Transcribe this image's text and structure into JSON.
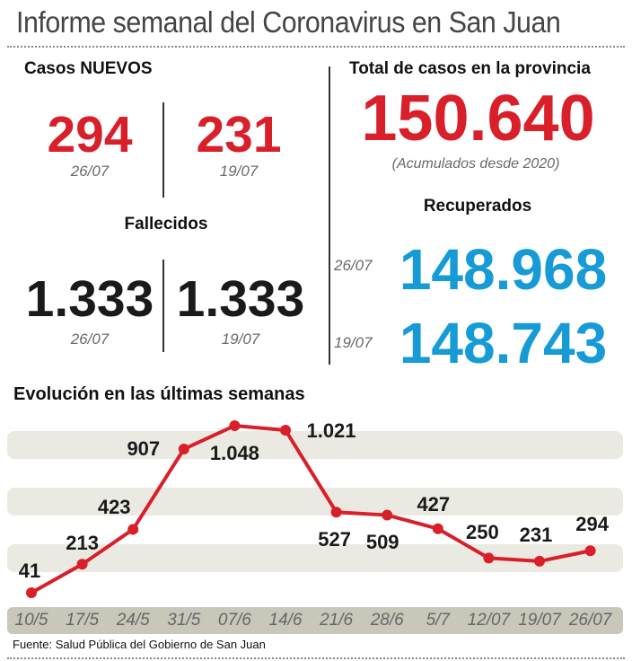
{
  "title": "Informe semanal del Coronavirus en San Juan",
  "casos_nuevos": {
    "heading": "Casos NUEVOS",
    "current": {
      "value": "294",
      "date": "26/07"
    },
    "previous": {
      "value": "231",
      "date": "19/07"
    }
  },
  "fallecidos": {
    "heading": "Fallecidos",
    "current": {
      "value": "1.333",
      "date": "26/07"
    },
    "previous": {
      "value": "1.333",
      "date": "19/07"
    }
  },
  "total": {
    "heading": "Total de casos en la provincia",
    "value": "150.640",
    "note": "(Acumulados desde 2020)"
  },
  "recuperados": {
    "heading": "Recuperados",
    "current": {
      "value": "148.968",
      "date": "26/07"
    },
    "previous": {
      "value": "148.743",
      "date": "19/07"
    }
  },
  "chart_data": {
    "type": "line",
    "title": "Evolución en las últimas semanas",
    "categories": [
      "10/5",
      "17/5",
      "24/5",
      "31/5",
      "07/6",
      "14/6",
      "21/6",
      "28/6",
      "5/7",
      "12/07",
      "19/07",
      "26/07"
    ],
    "values": [
      41,
      213,
      423,
      907,
      1048,
      1021,
      527,
      509,
      427,
      250,
      231,
      294
    ],
    "value_labels": [
      "41",
      "213",
      "423",
      "907",
      "1.048",
      "1.021",
      "527",
      "509",
      "427",
      "250",
      "231",
      "294"
    ],
    "series_color": "#d81f2a",
    "grid": "bands",
    "source": "Fuente: Salud Pública del Gobierno de San Juan"
  }
}
